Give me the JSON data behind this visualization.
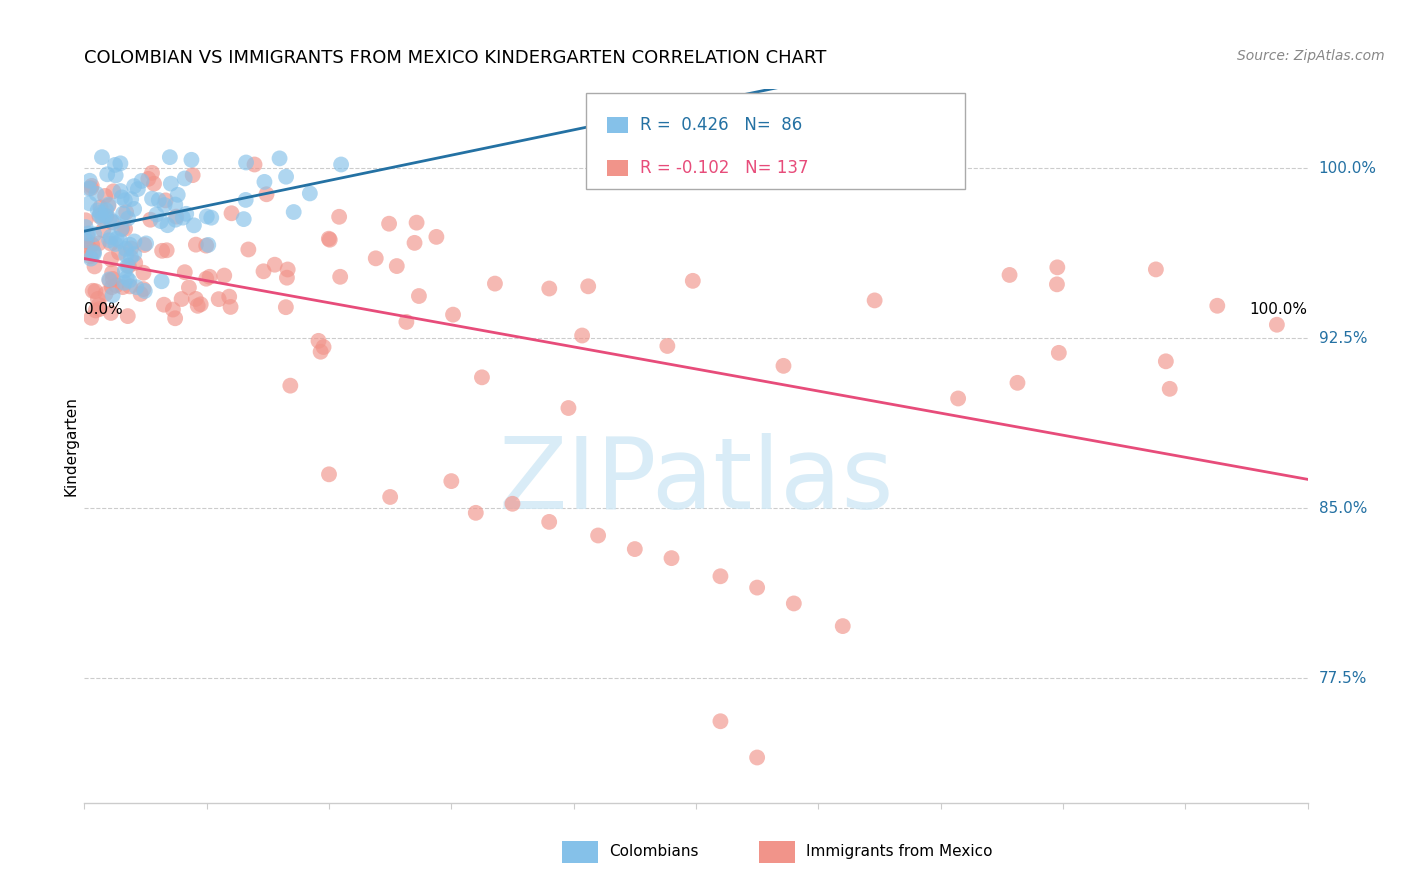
{
  "title": "COLOMBIAN VS IMMIGRANTS FROM MEXICO KINDERGARTEN CORRELATION CHART",
  "source": "Source: ZipAtlas.com",
  "ylabel": "Kindergarten",
  "R_colombian": 0.426,
  "N_colombian": 86,
  "R_mexican": -0.102,
  "N_mexican": 137,
  "ytick_labels": [
    "77.5%",
    "85.0%",
    "92.5%",
    "100.0%"
  ],
  "ytick_values": [
    0.775,
    0.85,
    0.925,
    1.0
  ],
  "xmin": 0.0,
  "xmax": 1.0,
  "ymin": 0.72,
  "ymax": 1.035,
  "color_colombian": "#85c1e9",
  "color_mexican": "#f1948a",
  "line_color_colombian": "#2471a3",
  "line_color_mexican": "#e74c7a",
  "legend_label_colombian": "Colombians",
  "legend_label_mexican": "Immigrants from Mexico",
  "watermark_text": "ZIPatlas",
  "watermark_color": "#d0e8f5",
  "title_fontsize": 13,
  "source_fontsize": 10,
  "tick_label_fontsize": 11,
  "legend_fontsize": 12,
  "ylabel_fontsize": 11,
  "grid_color": "#cccccc",
  "bottom_legend_x_labels": [
    "0.0%",
    "100.0%"
  ]
}
